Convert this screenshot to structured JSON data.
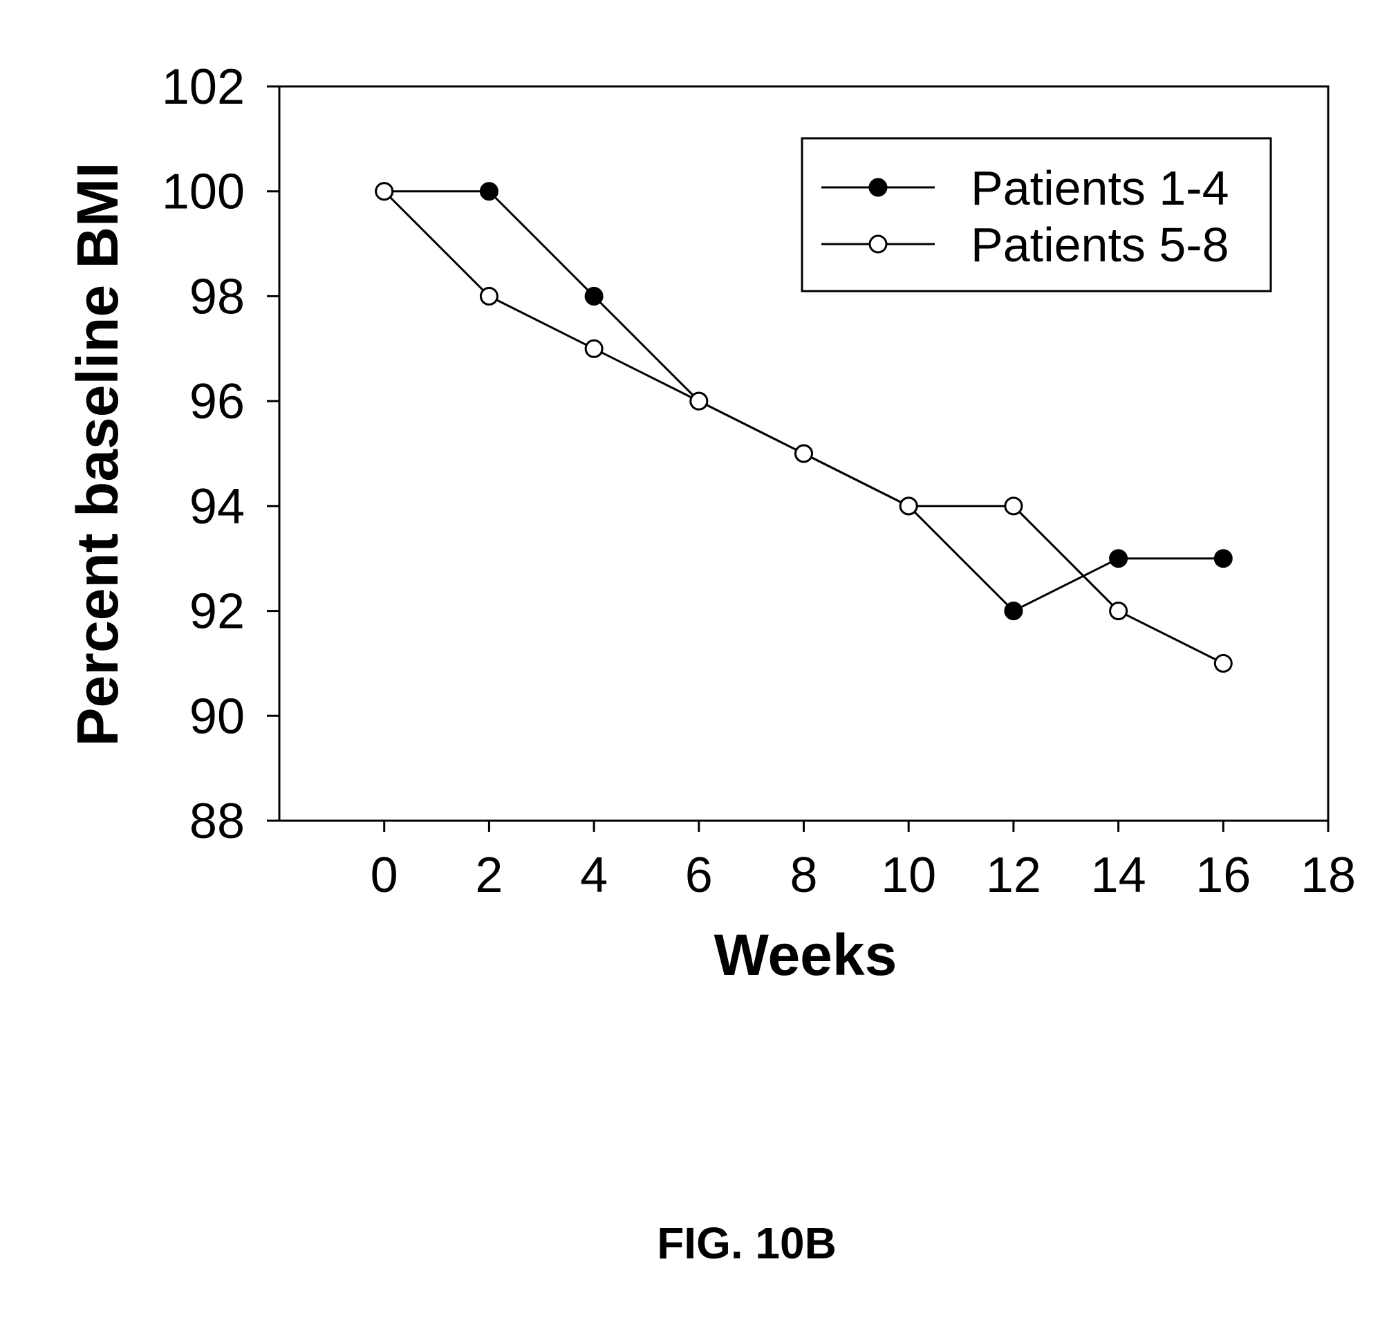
{
  "chart_data": {
    "type": "line",
    "title": "",
    "xlabel": "Weeks",
    "ylabel": "Percent baseline BMI",
    "xlim": [
      -2,
      18
    ],
    "ylim": [
      88,
      102
    ],
    "xticks": [
      0,
      2,
      4,
      6,
      8,
      10,
      12,
      14,
      16,
      18
    ],
    "yticks": [
      88,
      90,
      92,
      94,
      96,
      98,
      100,
      102
    ],
    "grid": false,
    "legend_position": "top-right",
    "series": [
      {
        "name": "Patients 1-4",
        "marker": "filled-circle",
        "x": [
          0,
          2,
          4,
          6,
          8,
          10,
          12,
          14,
          16
        ],
        "y": [
          100,
          100,
          98,
          96,
          95,
          94,
          92,
          93,
          93
        ]
      },
      {
        "name": "Patients 5-8",
        "marker": "open-circle",
        "x": [
          0,
          2,
          4,
          6,
          8,
          10,
          12,
          14,
          16
        ],
        "y": [
          100,
          98,
          97,
          96,
          95,
          94,
          94,
          92,
          91
        ]
      }
    ]
  },
  "caption": "FIG. 10B",
  "colors": {
    "ink": "#000000",
    "paper": "#ffffff"
  }
}
